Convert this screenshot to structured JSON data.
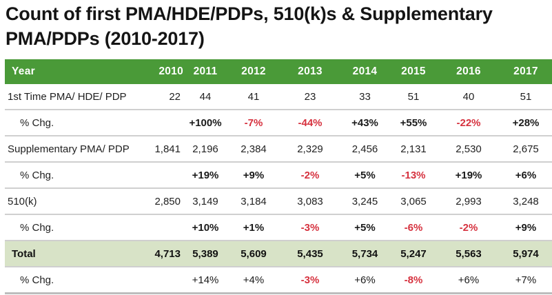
{
  "title": "Count of first PMA/HDE/PDPs, 510(k)s & Supplementary PMA/PDPs (2010-2017)",
  "colors": {
    "header_bg": "#4a9a38",
    "total_bg": "#d8e3c7",
    "negative": "#d6313e"
  },
  "table": {
    "header": {
      "label": "Year",
      "years": [
        "2010",
        "2011",
        "2012",
        "2013",
        "2014",
        "2015",
        "2016",
        "2017"
      ]
    },
    "rows": [
      {
        "label": "1st Time PMA/ HDE/ PDP",
        "type": "value",
        "values": [
          "22",
          "44",
          "41",
          "23",
          "33",
          "51",
          "40",
          "51"
        ]
      },
      {
        "label": "% Chg.",
        "type": "pct",
        "values": [
          "",
          "+100%",
          "-7%",
          "-44%",
          "+43%",
          "+55%",
          "-22%",
          "+28%"
        ]
      },
      {
        "label": "Supplementary PMA/ PDP",
        "type": "value",
        "values": [
          "1,841",
          "2,196",
          "2,384",
          "2,329",
          "2,456",
          "2,131",
          "2,530",
          "2,675"
        ]
      },
      {
        "label": "% Chg.",
        "type": "pct",
        "values": [
          "",
          "+19%",
          "+9%",
          "-2%",
          "+5%",
          "-13%",
          "+19%",
          "+6%"
        ]
      },
      {
        "label": "510(k)",
        "type": "value",
        "values": [
          "2,850",
          "3,149",
          "3,184",
          "3,083",
          "3,245",
          "3,065",
          "2,993",
          "3,248"
        ]
      },
      {
        "label": "% Chg.",
        "type": "pct",
        "values": [
          "",
          "+10%",
          "+1%",
          "-3%",
          "+5%",
          "-6%",
          "-2%",
          "+9%"
        ]
      },
      {
        "label": "Total",
        "type": "total",
        "values": [
          "4,713",
          "5,389",
          "5,609",
          "5,435",
          "5,734",
          "5,247",
          "5,563",
          "5,974"
        ]
      },
      {
        "label": "% Chg.",
        "type": "pct-total",
        "values": [
          "",
          "+14%",
          "+4%",
          "-3%",
          "+6%",
          "-8%",
          "+6%",
          "+7%"
        ]
      }
    ]
  }
}
